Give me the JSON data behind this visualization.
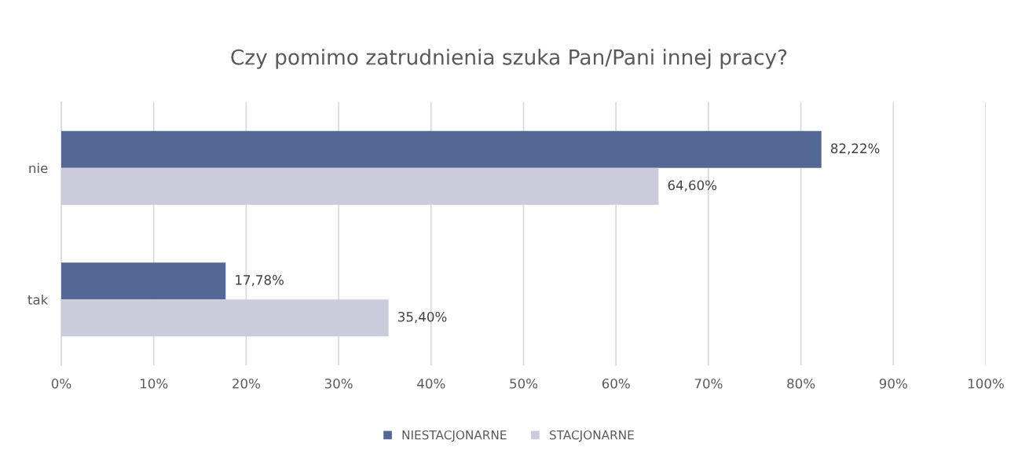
{
  "chart_data": {
    "type": "bar",
    "orientation": "horizontal",
    "title": "Czy pomimo zatrudnienia szuka Pan/Pani innej pracy?",
    "categories": [
      "nie",
      "tak"
    ],
    "series": [
      {
        "name": "NIESTACJONARNE",
        "color": "#536895",
        "values": [
          82.22,
          17.78
        ],
        "value_labels": [
          "82,22%",
          "17,78%"
        ]
      },
      {
        "name": "STACJONARNE",
        "color": "#cccbdb",
        "values": [
          64.6,
          35.4
        ],
        "value_labels": [
          "64,60%",
          "35,40%"
        ]
      }
    ],
    "xlim": [
      0,
      100
    ],
    "xticks": [
      {
        "value": 0,
        "label": "0%"
      },
      {
        "value": 10,
        "label": "10%"
      },
      {
        "value": 20,
        "label": "20%"
      },
      {
        "value": 30,
        "label": "30%"
      },
      {
        "value": 40,
        "label": "40%"
      },
      {
        "value": 50,
        "label": "50%"
      },
      {
        "value": 60,
        "label": "60%"
      },
      {
        "value": 70,
        "label": "70%"
      },
      {
        "value": 80,
        "label": "80%"
      },
      {
        "value": 90,
        "label": "90%"
      },
      {
        "value": 100,
        "label": "100%"
      }
    ],
    "grid": "x",
    "legend": "bottom"
  }
}
